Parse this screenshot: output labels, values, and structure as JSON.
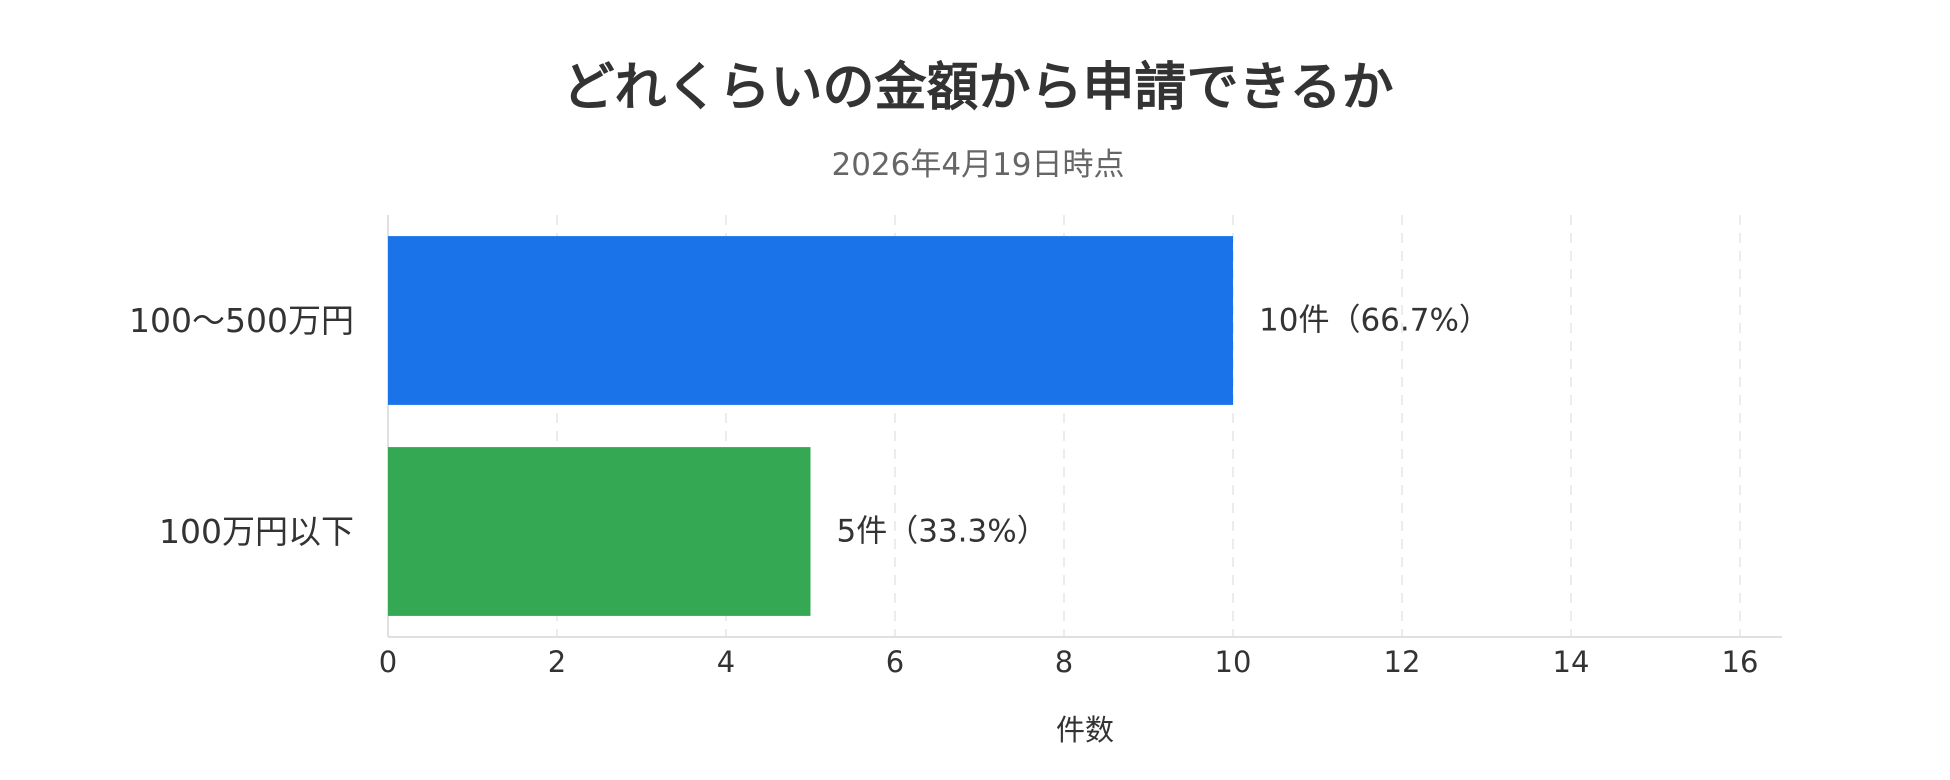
{
  "chart_data": {
    "type": "bar",
    "orientation": "horizontal",
    "title": "どれくらいの金額から申請できるか",
    "subtitle": "2026年4月19日時点",
    "xlabel": "件数",
    "ylabel": "",
    "xlim": [
      0,
      16
    ],
    "xticks": [
      0,
      2,
      4,
      6,
      8,
      10,
      12,
      14,
      16
    ],
    "grid": true,
    "categories": [
      "100〜500万円",
      "100万円以下"
    ],
    "values": [
      10,
      5
    ],
    "data_labels": [
      "10件（66.7%）",
      "5件（33.3%）"
    ],
    "colors": [
      "#1a73e8",
      "#34a853"
    ]
  }
}
